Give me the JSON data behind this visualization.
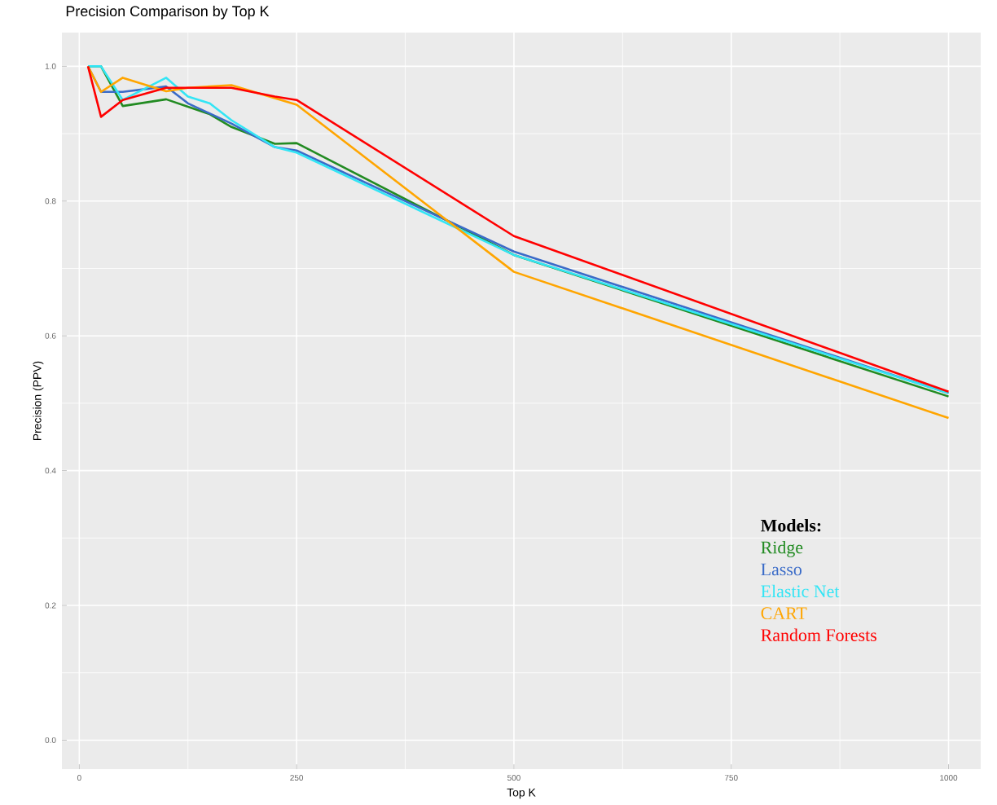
{
  "chart_data": {
    "type": "line",
    "title": "Precision Comparison by Top K",
    "xlabel": "Top K",
    "ylabel": "Precision (PPV)",
    "legend_title": "Models:",
    "xlim": [
      -20,
      1037
    ],
    "xticks": [
      0,
      250,
      500,
      750,
      1000
    ],
    "ylim": [
      -0.043,
      1.05
    ],
    "yticks": [
      {
        "value": 0,
        "label": "0.0"
      },
      0.2,
      0.4,
      0.6,
      0.8,
      {
        "value": 1,
        "label": "1.0"
      }
    ],
    "grid": true,
    "legend": "bottom right",
    "marker": "none",
    "line_style": "solid",
    "series": [
      {
        "name": "Ridge",
        "color": "#228b22",
        "x": [
          10,
          25,
          50,
          100,
          125,
          150,
          175,
          225,
          250,
          500,
          1000
        ],
        "values": [
          1.0,
          1.0,
          0.941,
          0.951,
          0.94,
          0.929,
          0.91,
          0.885,
          0.886,
          0.72,
          0.51
        ]
      },
      {
        "name": "Lasso",
        "color": "#3a6bc8",
        "x": [
          10,
          25,
          50,
          100,
          125,
          150,
          175,
          225,
          250,
          500,
          1000
        ],
        "values": [
          1.0,
          0.962,
          0.962,
          0.97,
          0.945,
          0.93,
          0.915,
          0.88,
          0.875,
          0.725,
          0.515
        ]
      },
      {
        "name": "Elastic Net",
        "color": "#33e5f5",
        "x": [
          10,
          25,
          50,
          100,
          125,
          150,
          175,
          225,
          250,
          500,
          1000
        ],
        "values": [
          1.0,
          1.0,
          0.95,
          0.983,
          0.955,
          0.945,
          0.92,
          0.88,
          0.872,
          0.72,
          0.515
        ]
      },
      {
        "name": "CART",
        "color": "#ffa500",
        "x": [
          10,
          25,
          50,
          100,
          125,
          175,
          250,
          500,
          1000
        ],
        "values": [
          1.0,
          0.962,
          0.983,
          0.963,
          0.968,
          0.972,
          0.943,
          0.695,
          0.478
        ]
      },
      {
        "name": "Random Forests",
        "color": "#ff0000",
        "x": [
          10,
          25,
          50,
          100,
          125,
          175,
          225,
          250,
          500,
          1000
        ],
        "values": [
          1.0,
          0.925,
          0.95,
          0.968,
          0.968,
          0.968,
          0.955,
          0.95,
          0.748,
          0.517
        ]
      }
    ]
  }
}
